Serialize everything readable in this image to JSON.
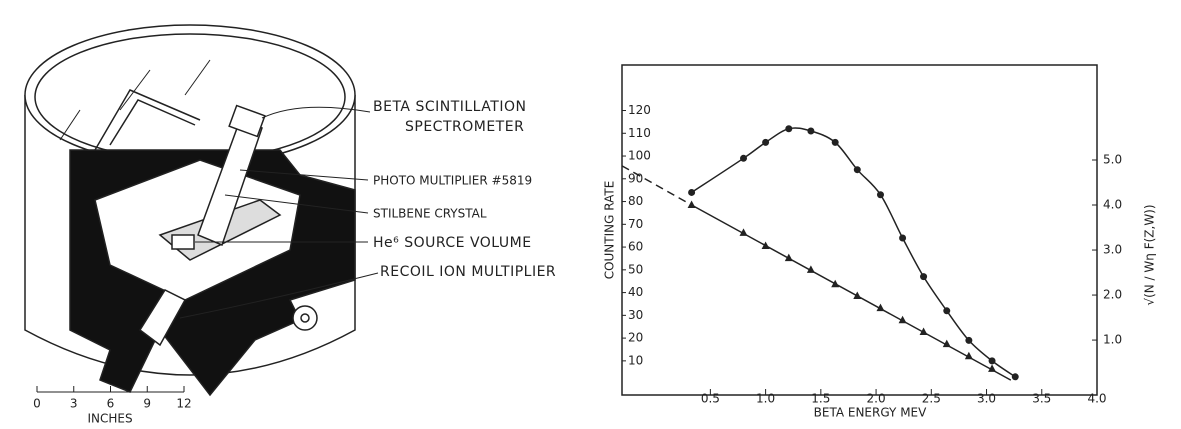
{
  "diagram": {
    "labels": [
      "BETA SCINTILLATION",
      "SPECTROMETER",
      "PHOTO MULTIPLIER #5819",
      "STILBENE CRYSTAL",
      "He⁶ SOURCE VOLUME",
      "RECOIL ION MULTIPLIER"
    ],
    "scale": {
      "ticks": [
        "0",
        "3",
        "6",
        "9",
        "12"
      ],
      "unit": "INCHES"
    }
  },
  "chart_data": {
    "type": "scatter",
    "xlabel": "BETA ENERGY MEV",
    "ylabel": "COUNTING RATE",
    "y2label": "√(N / Wη F(Z,W))",
    "xlim": [
      -0.3,
      4.0
    ],
    "xticks": [
      0.5,
      {
        "value": 1,
        "label": "1.0"
      },
      1.5,
      {
        "value": 2,
        "label": "2.0"
      },
      2.5,
      {
        "value": 3,
        "label": "3.0"
      },
      3.5,
      {
        "value": 4,
        "label": "4.0"
      }
    ],
    "ylim": [
      -5,
      140
    ],
    "yticks": [
      10,
      20,
      30,
      40,
      50,
      60,
      70,
      80,
      90,
      100,
      110,
      120
    ],
    "y2lim": [
      -0.22,
      7.11
    ],
    "y2ticks": [
      {
        "value": 1,
        "label": "1.0"
      },
      {
        "value": 2,
        "label": "2.0"
      },
      {
        "value": 3,
        "label": "3.0"
      },
      {
        "value": 4,
        "label": "4.0"
      },
      {
        "value": 5,
        "label": "5.0"
      }
    ],
    "color": "#222222",
    "series": [
      {
        "marker": "circle",
        "curve": "smooth",
        "x": [
          0.33,
          0.8,
          1.0,
          1.21,
          1.41,
          1.63,
          1.83,
          2.04,
          2.24,
          2.43,
          2.64,
          2.84,
          3.05,
          3.26
        ],
        "values": [
          84,
          99,
          106,
          112,
          111,
          106,
          94,
          83,
          64,
          47,
          32,
          19,
          10,
          3
        ]
      },
      {
        "marker": "triangle",
        "axis": "y2",
        "x": [
          0.33,
          0.8,
          1.0,
          1.21,
          1.41,
          1.63,
          1.83,
          2.04,
          2.24,
          2.43,
          2.64,
          2.84,
          3.05
        ],
        "values": [
          4.0,
          3.38,
          3.09,
          2.82,
          2.56,
          2.24,
          1.98,
          1.71,
          1.44,
          1.18,
          0.91,
          0.64,
          0.36
        ]
      }
    ],
    "fit_line": {
      "axis": "y2",
      "x": [
        -0.3,
        0.33,
        3.22
      ],
      "values": [
        4.87,
        4.0,
        0.11
      ],
      "styles": [
        "dashed",
        "solid"
      ]
    }
  }
}
